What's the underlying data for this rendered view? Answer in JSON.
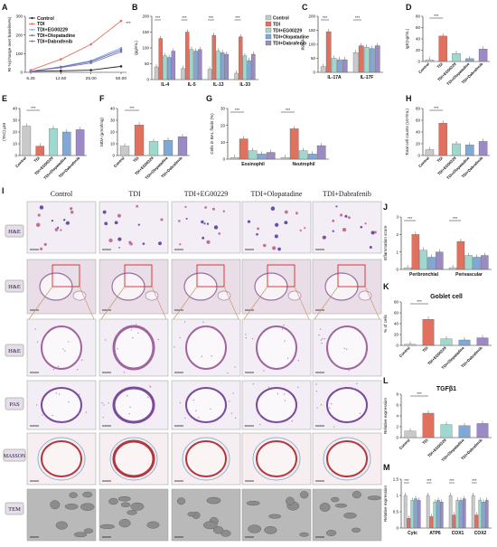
{
  "figure": {
    "panel_labels": {
      "A": "A",
      "B": "B",
      "C": "C",
      "D": "D",
      "E": "E",
      "F": "F",
      "G": "G",
      "H": "H",
      "I": "I",
      "J": "J",
      "K": "K",
      "L": "L",
      "M": "M"
    },
    "micro_columns": [
      "Control",
      "TDI",
      "TDI+EG00229",
      "TDI+Olopatadine",
      "TDI+Dabrafenib"
    ],
    "micro_rows": [
      "H&E",
      "H&E",
      "H&E",
      "PAS",
      "MASSON",
      "TEM"
    ],
    "significance": "***",
    "groups": [
      "Control",
      "TDI",
      "TDI+EG00229",
      "TDI+Olopatadine",
      "TDI+Dabrafenib"
    ]
  },
  "colors": {
    "Control": "#c9c9c9",
    "TDI": "#e0715f",
    "TDI+EG00229": "#9ed8cf",
    "TDI+Olopatadine": "#7fa8d6",
    "TDI+Dabrafenib": "#9c8ac4",
    "line_control": "#222222",
    "line_tdi": "#e0715f",
    "line_eg": "#7fa8d6",
    "line_olo": "#5b6fb5",
    "line_dab": "#8a6fc2"
  },
  "chart_data": [
    {
      "id": "A",
      "type": "line",
      "ylabel": "RI %(change over baseline%)",
      "ylim": [
        0,
        300
      ],
      "yticks": [
        0,
        100,
        200,
        300
      ],
      "x": [
        "6.25",
        "12.50",
        "25.00",
        "50.00"
      ],
      "series": [
        {
          "name": "Control",
          "values": [
            5,
            8,
            12,
            32
          ]
        },
        {
          "name": "TDI",
          "values": [
            12,
            70,
            150,
            275
          ]
        },
        {
          "name": "TDI+EG00229",
          "values": [
            6,
            30,
            62,
            130
          ]
        },
        {
          "name": "TDI+Olopatadine",
          "values": [
            5,
            28,
            58,
            120
          ]
        },
        {
          "name": "TDI+Dabrafenib",
          "values": [
            5,
            25,
            50,
            110
          ]
        }
      ]
    },
    {
      "id": "B",
      "type": "bar",
      "ylabel": "(pg/mL)",
      "ylim": [
        0,
        200
      ],
      "yticks": [
        0,
        50,
        100,
        150,
        200
      ],
      "categories": [
        "IL-4",
        "IL-5",
        "IL-13",
        "IL-33"
      ],
      "series": [
        {
          "name": "Control",
          "values": [
            40,
            35,
            32,
            20
          ]
        },
        {
          "name": "TDI",
          "values": [
            130,
            150,
            140,
            135
          ]
        },
        {
          "name": "TDI+EG00229",
          "values": [
            75,
            95,
            90,
            75
          ]
        },
        {
          "name": "TDI+Olopatadine",
          "values": [
            70,
            90,
            85,
            60
          ]
        },
        {
          "name": "TDI+Dabrafenib",
          "values": [
            90,
            95,
            80,
            80
          ]
        }
      ]
    },
    {
      "id": "C",
      "type": "bar",
      "ylabel": "pg/mL",
      "ylim": [
        0,
        200
      ],
      "yticks": [
        0,
        50,
        100,
        150,
        200
      ],
      "categories": [
        "IL-17A",
        "IL-17F"
      ],
      "series": [
        {
          "name": "Control",
          "values": [
            20,
            70
          ]
        },
        {
          "name": "TDI",
          "values": [
            145,
            95
          ]
        },
        {
          "name": "TDI+EG00229",
          "values": [
            50,
            90
          ]
        },
        {
          "name": "TDI+Olopatadine",
          "values": [
            45,
            85
          ]
        },
        {
          "name": "TDI+Dabrafenib",
          "values": [
            45,
            95
          ]
        }
      ]
    },
    {
      "id": "D",
      "type": "bar",
      "ylabel": "IgE(ng/mL)",
      "ylim": [
        0,
        80
      ],
      "yticks": [
        0,
        20,
        40,
        60,
        80
      ],
      "categories": [
        "Control",
        "TDI",
        "TDI+EG00229",
        "TDI+Olopatadine",
        "TDI+Dabrafenib"
      ],
      "values": [
        3,
        45,
        14,
        5,
        22
      ]
    },
    {
      "id": "E",
      "type": "bar",
      "ylabel": "(TAC) μM",
      "ylim": [
        0,
        40
      ],
      "yticks": [
        0,
        10,
        20,
        30,
        40
      ],
      "categories": [
        "Control",
        "TDI",
        "TDI+EG00229",
        "TDI+Olopatadine",
        "TDI+Dabrafenib"
      ],
      "values": [
        25,
        8,
        23,
        20,
        22
      ]
    },
    {
      "id": "F",
      "type": "bar",
      "ylabel": "MDA (μmol/mg)",
      "ylim": [
        0,
        40
      ],
      "yticks": [
        0,
        10,
        20,
        30,
        40
      ],
      "categories": [
        "Control",
        "TDI",
        "TDI+EG00229",
        "TDI+Olopatadine",
        "TDI+Dabrafenib"
      ],
      "values": [
        8,
        26,
        12,
        13,
        16
      ]
    },
    {
      "id": "G",
      "type": "bar",
      "ylabel": "Cells in BAL fluids (%)",
      "ylim": [
        0,
        30
      ],
      "yticks": [
        0,
        10,
        20,
        30
      ],
      "categories": [
        "Eosinophil",
        "Neutrophil"
      ],
      "series": [
        {
          "name": "Control",
          "values": [
            1,
            1
          ]
        },
        {
          "name": "TDI",
          "values": [
            12,
            18
          ]
        },
        {
          "name": "TDI+EG00229",
          "values": [
            5,
            5
          ]
        },
        {
          "name": "TDI+Olopatadine",
          "values": [
            3,
            3
          ]
        },
        {
          "name": "TDI+Dabrafenib",
          "values": [
            4,
            8
          ]
        }
      ]
    },
    {
      "id": "H",
      "type": "bar",
      "ylabel": "Total cell counts (10⁴/mL)",
      "ylim": [
        0,
        80
      ],
      "yticks": [
        0,
        20,
        40,
        60,
        80
      ],
      "categories": [
        "Control",
        "TDI",
        "TDI+EG00229",
        "TDI+Olopatadine",
        "TDI+Dabrafenib"
      ],
      "values": [
        10,
        55,
        20,
        18,
        24
      ]
    },
    {
      "id": "J",
      "type": "bar",
      "ylabel": "Inflammation score",
      "ylim": [
        0,
        3
      ],
      "yticks": [
        0,
        1,
        2,
        3
      ],
      "categories": [
        "Peribronchial",
        "Perivascular"
      ],
      "series": [
        {
          "name": "Control",
          "values": [
            0.1,
            0.1
          ]
        },
        {
          "name": "TDI",
          "values": [
            2.0,
            1.6
          ]
        },
        {
          "name": "TDI+EG00229",
          "values": [
            1.1,
            0.8
          ]
        },
        {
          "name": "TDI+Olopatadine",
          "values": [
            0.7,
            0.7
          ]
        },
        {
          "name": "TDI+Dabrafenib",
          "values": [
            1.0,
            0.8
          ]
        }
      ]
    },
    {
      "id": "K",
      "type": "bar",
      "title": "Goblet cell",
      "ylabel": "% of cells",
      "ylim": [
        0,
        80
      ],
      "yticks": [
        0,
        20,
        40,
        60,
        80
      ],
      "categories": [
        "Control",
        "TDI",
        "TDI+EG00229",
        "TDI+Olopatadine",
        "TDI+Dabrafenib"
      ],
      "values": [
        2,
        48,
        12,
        10,
        14
      ]
    },
    {
      "id": "L",
      "type": "bar",
      "title": "TGFβ1",
      "ylabel": "Relative expression",
      "ylim": [
        0,
        8
      ],
      "yticks": [
        0,
        2,
        4,
        6,
        8
      ],
      "categories": [
        "Control",
        "TDI",
        "TDI+EG00229",
        "TDI+Olopatadine",
        "TDI+Dabrafenib"
      ],
      "values": [
        1.2,
        4.5,
        2.4,
        2.2,
        2.6
      ]
    },
    {
      "id": "M",
      "type": "bar",
      "ylabel": "Relative expression",
      "ylim": [
        0,
        1.5
      ],
      "yticks": [
        0,
        0.5,
        1.0,
        1.5
      ],
      "categories": [
        "Cytc",
        "ATP6",
        "COX1",
        "COX2"
      ],
      "series": [
        {
          "name": "Control",
          "values": [
            1.0,
            1.0,
            1.0,
            1.0
          ]
        },
        {
          "name": "TDI",
          "values": [
            0.3,
            0.35,
            0.4,
            0.4
          ]
        },
        {
          "name": "TDI+EG00229",
          "values": [
            0.85,
            0.8,
            0.85,
            0.85
          ]
        },
        {
          "name": "TDI+Olopatadine",
          "values": [
            0.9,
            0.85,
            0.85,
            0.8
          ]
        },
        {
          "name": "TDI+Dabrafenib",
          "values": [
            0.85,
            0.8,
            0.9,
            0.85
          ]
        }
      ]
    }
  ]
}
